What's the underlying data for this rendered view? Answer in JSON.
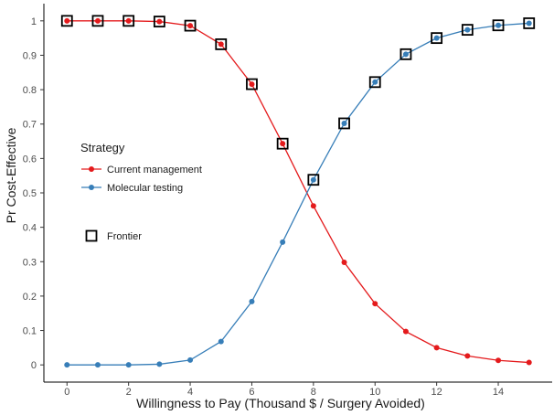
{
  "chart_data": {
    "type": "line",
    "title": "",
    "xlabel": "Willingness to Pay (Thousand $ / Surgery Avoided)",
    "ylabel": "Pr Cost-Effective",
    "xlim": [
      -0.75,
      15.75
    ],
    "ylim": [
      -0.05,
      1.05
    ],
    "x_ticks": [
      0,
      2,
      4,
      6,
      8,
      10,
      12,
      14
    ],
    "y_ticks": [
      0,
      0.1,
      0.2,
      0.3,
      0.4,
      0.5,
      0.6,
      0.7,
      0.8,
      0.9,
      1
    ],
    "x_tick_labels": [
      "0",
      "2",
      "4",
      "6",
      "8",
      "10",
      "12",
      "14"
    ],
    "y_tick_labels": [
      "0",
      "0.1",
      "0.2",
      "0.3",
      "0.4",
      "0.5",
      "0.6",
      "0.7",
      "0.8",
      "0.9",
      "1"
    ],
    "grid": false,
    "x": [
      0,
      1,
      2,
      3,
      4,
      5,
      6,
      7,
      8,
      9,
      10,
      11,
      12,
      13,
      14,
      15
    ],
    "series": [
      {
        "name": "Current management",
        "color": "#e41a1c",
        "values": [
          1.0,
          1.0,
          1.0,
          0.998,
          0.986,
          0.932,
          0.816,
          0.643,
          0.462,
          0.298,
          0.178,
          0.097,
          0.05,
          0.026,
          0.013,
          0.007
        ]
      },
      {
        "name": "Molecular testing",
        "color": "#377eb8",
        "values": [
          0.0,
          0.0,
          0.0,
          0.002,
          0.014,
          0.068,
          0.184,
          0.357,
          0.538,
          0.702,
          0.822,
          0.903,
          0.95,
          0.974,
          0.987,
          0.993
        ]
      }
    ],
    "frontier": {
      "label": "Frontier",
      "points": [
        {
          "x": 0,
          "y": 1.0
        },
        {
          "x": 1,
          "y": 1.0
        },
        {
          "x": 2,
          "y": 1.0
        },
        {
          "x": 3,
          "y": 0.998
        },
        {
          "x": 4,
          "y": 0.986
        },
        {
          "x": 5,
          "y": 0.932
        },
        {
          "x": 6,
          "y": 0.816
        },
        {
          "x": 7,
          "y": 0.643
        },
        {
          "x": 8,
          "y": 0.538
        },
        {
          "x": 9,
          "y": 0.702
        },
        {
          "x": 10,
          "y": 0.822
        },
        {
          "x": 11,
          "y": 0.903
        },
        {
          "x": 12,
          "y": 0.95
        },
        {
          "x": 13,
          "y": 0.974
        },
        {
          "x": 14,
          "y": 0.987
        },
        {
          "x": 15,
          "y": 0.993
        }
      ]
    },
    "legend": {
      "title": "Strategy",
      "position": "inside-left"
    }
  }
}
